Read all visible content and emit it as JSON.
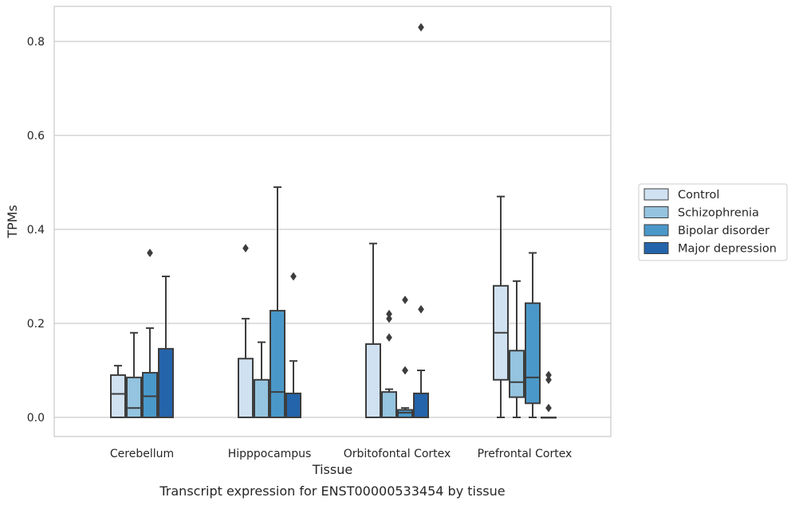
{
  "caption": "Transcript expression for ENST00000533454 by tissue",
  "colors": {
    "series": [
      "#d0e1f2",
      "#94c4df",
      "#4a98c9",
      "#2464ab"
    ],
    "edge": "#3d3d3d",
    "grid": "#cccccc",
    "frame": "#cccccc"
  },
  "chart_data": {
    "type": "box",
    "title": "",
    "xlabel": "Tissue",
    "ylabel": "TPMs",
    "ylim": [
      -0.04,
      0.87
    ],
    "yticks": [
      0.0,
      0.2,
      0.4,
      0.6,
      0.8
    ],
    "ytick_labels": [
      "0.0",
      "0.2",
      "0.4",
      "0.6",
      "0.8"
    ],
    "grid": "horizontal",
    "legend_position": "right",
    "categories": [
      "Cerebellum",
      "Hipppocampus",
      "Orbitofontal Cortex",
      "Prefrontal Cortex"
    ],
    "series": [
      {
        "name": "Control",
        "boxes": [
          {
            "lower_whisker": 0.0,
            "q1": 0.0,
            "median": 0.05,
            "q3": 0.09,
            "upper_whisker": 0.11,
            "outliers": []
          },
          {
            "lower_whisker": 0.0,
            "q1": 0.0,
            "median": 0.0,
            "q3": 0.125,
            "upper_whisker": 0.21,
            "outliers": [
              0.36
            ]
          },
          {
            "lower_whisker": 0.0,
            "q1": 0.0,
            "median": 0.0,
            "q3": 0.156,
            "upper_whisker": 0.37,
            "outliers": []
          },
          {
            "lower_whisker": 0.0,
            "q1": 0.08,
            "median": 0.18,
            "q3": 0.28,
            "upper_whisker": 0.47,
            "outliers": []
          }
        ]
      },
      {
        "name": "Schizophrenia",
        "boxes": [
          {
            "lower_whisker": 0.0,
            "q1": 0.0,
            "median": 0.02,
            "q3": 0.085,
            "upper_whisker": 0.18,
            "outliers": []
          },
          {
            "lower_whisker": 0.0,
            "q1": 0.0,
            "median": 0.0,
            "q3": 0.08,
            "upper_whisker": 0.16,
            "outliers": []
          },
          {
            "lower_whisker": 0.0,
            "q1": 0.0,
            "median": 0.0,
            "q3": 0.054,
            "upper_whisker": 0.06,
            "outliers": [
              0.17,
              0.21,
              0.22
            ]
          },
          {
            "lower_whisker": 0.0,
            "q1": 0.043,
            "median": 0.075,
            "q3": 0.142,
            "upper_whisker": 0.29,
            "outliers": []
          }
        ]
      },
      {
        "name": "Bipolar disorder",
        "boxes": [
          {
            "lower_whisker": 0.0,
            "q1": 0.0,
            "median": 0.045,
            "q3": 0.095,
            "upper_whisker": 0.19,
            "outliers": [
              0.35
            ]
          },
          {
            "lower_whisker": 0.0,
            "q1": 0.0,
            "median": 0.054,
            "q3": 0.227,
            "upper_whisker": 0.49,
            "outliers": []
          },
          {
            "lower_whisker": 0.0,
            "q1": 0.0,
            "median": 0.01,
            "q3": 0.016,
            "upper_whisker": 0.02,
            "outliers": [
              0.1,
              0.1,
              0.25
            ]
          },
          {
            "lower_whisker": 0.0,
            "q1": 0.03,
            "median": 0.085,
            "q3": 0.243,
            "upper_whisker": 0.35,
            "outliers": []
          }
        ]
      },
      {
        "name": "Major depression",
        "boxes": [
          {
            "lower_whisker": 0.0,
            "q1": 0.0,
            "median": 0.0,
            "q3": 0.146,
            "upper_whisker": 0.3,
            "outliers": []
          },
          {
            "lower_whisker": 0.0,
            "q1": 0.0,
            "median": 0.0,
            "q3": 0.051,
            "upper_whisker": 0.12,
            "outliers": [
              0.3
            ]
          },
          {
            "lower_whisker": 0.0,
            "q1": 0.0,
            "median": 0.0,
            "q3": 0.051,
            "upper_whisker": 0.1,
            "outliers": [
              0.23,
              0.83
            ]
          },
          {
            "lower_whisker": 0.0,
            "q1": 0.0,
            "median": 0.0,
            "q3": 0.0,
            "upper_whisker": 0.0,
            "outliers": [
              0.02,
              0.08,
              0.09
            ]
          }
        ]
      }
    ]
  }
}
